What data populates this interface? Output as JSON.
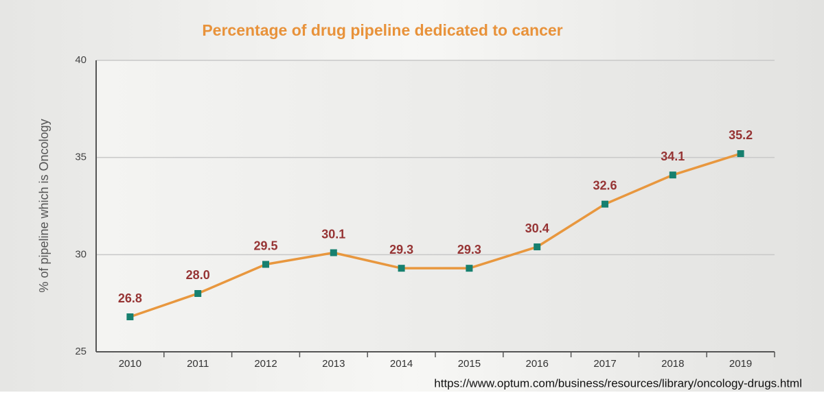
{
  "chart_data": {
    "type": "line",
    "title": "Percentage of drug pipeline dedicated to cancer",
    "y_label": "% of pipeline which is Oncology",
    "categories": [
      "2010",
      "2011",
      "2012",
      "2013",
      "2014",
      "2015",
      "2016",
      "2017",
      "2018",
      "2019"
    ],
    "series": [
      {
        "name": "Oncology share",
        "color": "#e8973e",
        "marker_color": "#17806f",
        "values": [
          26.8,
          28.0,
          29.5,
          30.1,
          29.3,
          29.3,
          30.4,
          32.6,
          34.1,
          35.2
        ],
        "value_labels": [
          "26.8",
          "28.0",
          "29.5",
          "30.1",
          "29.3",
          "29.3",
          "30.4",
          "32.6",
          "34.1",
          "35.2"
        ]
      }
    ],
    "ylim": [
      25,
      40
    ],
    "yticks": [
      25,
      30,
      35,
      40
    ],
    "grid": true,
    "source": "https://www.optum.com/business/resources/library/oncology-drugs.html"
  }
}
